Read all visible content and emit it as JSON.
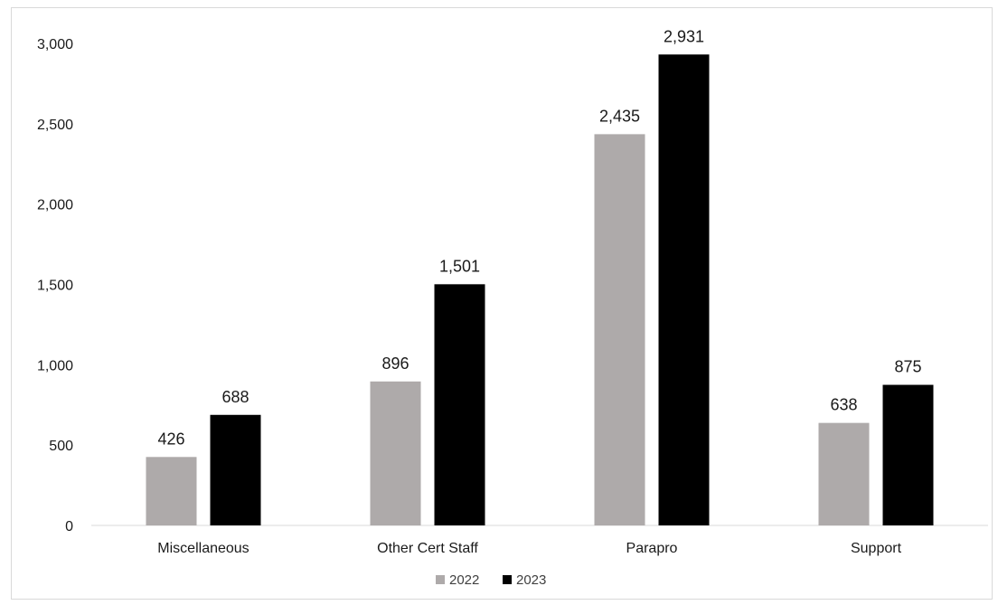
{
  "chart_data": {
    "type": "bar",
    "title": "",
    "xlabel": "",
    "ylabel": "",
    "categories": [
      "Miscellaneous",
      "Other Cert Staff",
      "Parapro",
      "Support"
    ],
    "series": [
      {
        "name": "2022",
        "values": [
          426,
          896,
          2435,
          638
        ],
        "color": "#aeaaaa",
        "labels": [
          "426",
          "896",
          "2,435",
          "638"
        ]
      },
      {
        "name": "2023",
        "values": [
          688,
          1501,
          2931,
          875
        ],
        "color": "#000000",
        "labels": [
          "688",
          "1,501",
          "2,931",
          "875"
        ]
      }
    ],
    "ylim": [
      0,
      3000
    ],
    "yticks": [
      0,
      500,
      1000,
      1500,
      2000,
      2500,
      3000
    ],
    "ytick_labels": [
      "0",
      "500",
      "1,000",
      "1,500",
      "2,000",
      "2,500",
      "3,000"
    ],
    "grid": false,
    "legend": "bottom-center"
  }
}
